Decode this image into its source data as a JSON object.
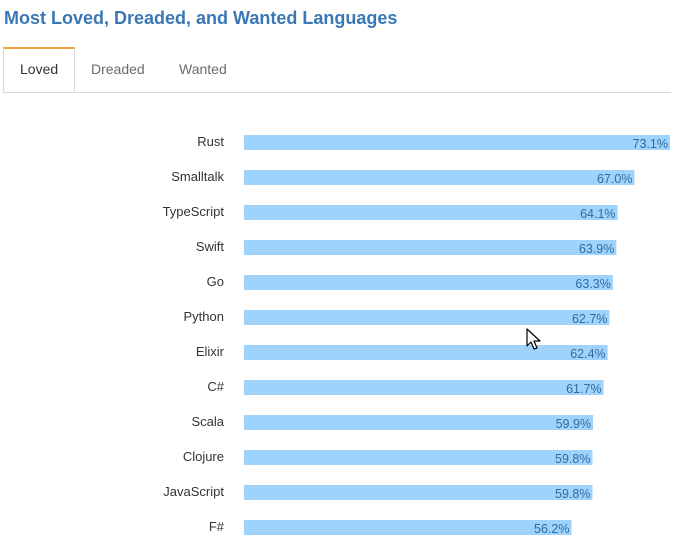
{
  "header": {
    "title": "Most Loved, Dreaded, and Wanted Languages"
  },
  "tabs": [
    {
      "label": "Loved",
      "active": true
    },
    {
      "label": "Dreaded",
      "active": false
    },
    {
      "label": "Wanted",
      "active": false
    }
  ],
  "colors": {
    "title": "#3a78b5",
    "bar": "#9fd3fb",
    "value_label": "#2e6da4",
    "category_label": "#333333",
    "tab_accent": "#f0a236"
  },
  "cursor": {
    "icon": "mouse-pointer-icon"
  },
  "chart_data": {
    "type": "bar",
    "orientation": "horizontal",
    "categories": [
      "Rust",
      "Smalltalk",
      "TypeScript",
      "Swift",
      "Go",
      "Python",
      "Elixir",
      "C#",
      "Scala",
      "Clojure",
      "JavaScript",
      "F#"
    ],
    "values": [
      73.1,
      67.0,
      64.1,
      63.9,
      63.3,
      62.7,
      62.4,
      61.7,
      59.9,
      59.8,
      59.8,
      56.2
    ],
    "value_labels": [
      "73.1%",
      "67.0%",
      "64.1%",
      "63.9%",
      "63.3%",
      "62.7%",
      "62.4%",
      "61.7%",
      "59.9%",
      "59.8%",
      "59.8%",
      "56.2%"
    ],
    "xlim": [
      0,
      73.1
    ],
    "grid": false,
    "legend": "none"
  }
}
